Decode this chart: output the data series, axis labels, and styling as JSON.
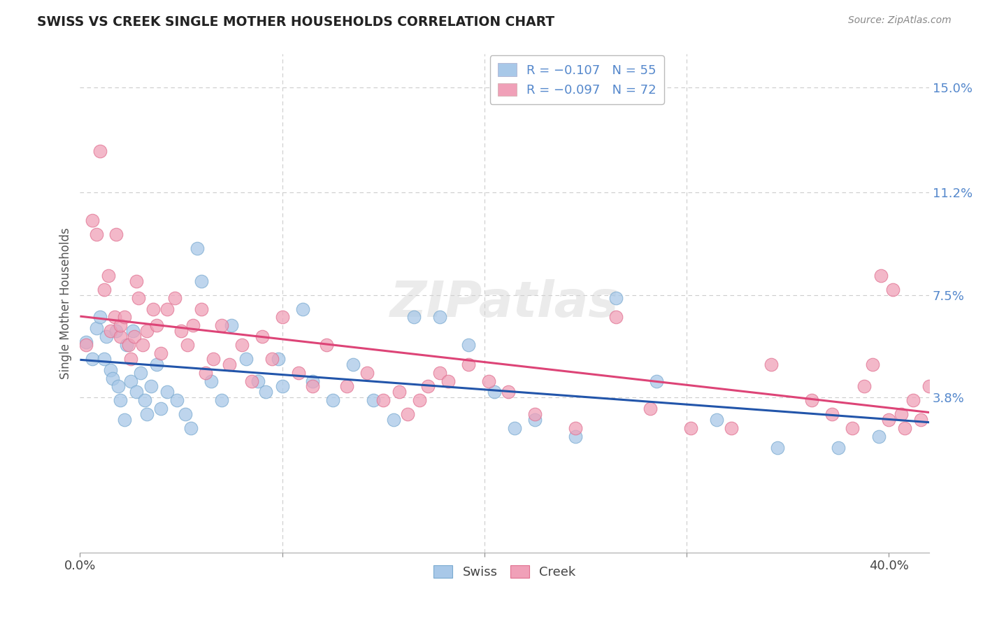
{
  "title": "SWISS VS CREEK SINGLE MOTHER HOUSEHOLDS CORRELATION CHART",
  "source": "Source: ZipAtlas.com",
  "ylabel": "Single Mother Households",
  "yticks": [
    0.0,
    0.038,
    0.075,
    0.112,
    0.15
  ],
  "ytick_labels": [
    "",
    "3.8%",
    "7.5%",
    "11.2%",
    "15.0%"
  ],
  "xlim": [
    0.0,
    0.42
  ],
  "ylim": [
    -0.018,
    0.162
  ],
  "watermark_text": "ZIPatlas",
  "swiss_color": "#a8c8e8",
  "creek_color": "#f0a0b8",
  "swiss_line_color": "#2255aa",
  "creek_line_color": "#dd4477",
  "swiss_marker_edge": "#7aaad0",
  "creek_marker_edge": "#e07090",
  "swiss_x": [
    0.003,
    0.006,
    0.008,
    0.01,
    0.012,
    0.013,
    0.015,
    0.016,
    0.018,
    0.019,
    0.02,
    0.022,
    0.023,
    0.025,
    0.026,
    0.028,
    0.03,
    0.032,
    0.033,
    0.035,
    0.038,
    0.04,
    0.043,
    0.048,
    0.052,
    0.055,
    0.058,
    0.06,
    0.065,
    0.07,
    0.075,
    0.082,
    0.088,
    0.092,
    0.098,
    0.1,
    0.11,
    0.115,
    0.125,
    0.135,
    0.145,
    0.155,
    0.165,
    0.178,
    0.192,
    0.205,
    0.215,
    0.225,
    0.245,
    0.265,
    0.285,
    0.315,
    0.345,
    0.375,
    0.395
  ],
  "swiss_y": [
    0.058,
    0.052,
    0.063,
    0.067,
    0.052,
    0.06,
    0.048,
    0.045,
    0.062,
    0.042,
    0.037,
    0.03,
    0.057,
    0.044,
    0.062,
    0.04,
    0.047,
    0.037,
    0.032,
    0.042,
    0.05,
    0.034,
    0.04,
    0.037,
    0.032,
    0.027,
    0.092,
    0.08,
    0.044,
    0.037,
    0.064,
    0.052,
    0.044,
    0.04,
    0.052,
    0.042,
    0.07,
    0.044,
    0.037,
    0.05,
    0.037,
    0.03,
    0.067,
    0.067,
    0.057,
    0.04,
    0.027,
    0.03,
    0.024,
    0.074,
    0.044,
    0.03,
    0.02,
    0.02,
    0.024
  ],
  "creek_x": [
    0.003,
    0.006,
    0.008,
    0.01,
    0.012,
    0.014,
    0.015,
    0.017,
    0.018,
    0.02,
    0.02,
    0.022,
    0.024,
    0.025,
    0.027,
    0.028,
    0.029,
    0.031,
    0.033,
    0.036,
    0.038,
    0.04,
    0.043,
    0.047,
    0.05,
    0.053,
    0.056,
    0.06,
    0.062,
    0.066,
    0.07,
    0.074,
    0.08,
    0.085,
    0.09,
    0.095,
    0.1,
    0.108,
    0.115,
    0.122,
    0.132,
    0.142,
    0.15,
    0.158,
    0.162,
    0.168,
    0.172,
    0.178,
    0.182,
    0.192,
    0.202,
    0.212,
    0.225,
    0.245,
    0.265,
    0.282,
    0.302,
    0.322,
    0.342,
    0.362,
    0.372,
    0.382,
    0.388,
    0.392,
    0.396,
    0.4,
    0.402,
    0.406,
    0.408,
    0.412,
    0.416,
    0.42
  ],
  "creek_y": [
    0.057,
    0.102,
    0.097,
    0.127,
    0.077,
    0.082,
    0.062,
    0.067,
    0.097,
    0.06,
    0.064,
    0.067,
    0.057,
    0.052,
    0.06,
    0.08,
    0.074,
    0.057,
    0.062,
    0.07,
    0.064,
    0.054,
    0.07,
    0.074,
    0.062,
    0.057,
    0.064,
    0.07,
    0.047,
    0.052,
    0.064,
    0.05,
    0.057,
    0.044,
    0.06,
    0.052,
    0.067,
    0.047,
    0.042,
    0.057,
    0.042,
    0.047,
    0.037,
    0.04,
    0.032,
    0.037,
    0.042,
    0.047,
    0.044,
    0.05,
    0.044,
    0.04,
    0.032,
    0.027,
    0.067,
    0.034,
    0.027,
    0.027,
    0.05,
    0.037,
    0.032,
    0.027,
    0.042,
    0.05,
    0.082,
    0.03,
    0.077,
    0.032,
    0.027,
    0.037,
    0.03,
    0.042
  ],
  "legend_label_swiss": "R = −0.107   N = 55",
  "legend_label_creek": "R = −0.097   N = 72",
  "legend_color_swiss": "#a8c8e8",
  "legend_color_creek": "#f0a0b8",
  "bottom_label_swiss": "Swiss",
  "bottom_label_creek": "Creek",
  "tick_color": "#5588cc",
  "grid_color": "#cccccc",
  "title_color": "#222222",
  "source_color": "#888888"
}
